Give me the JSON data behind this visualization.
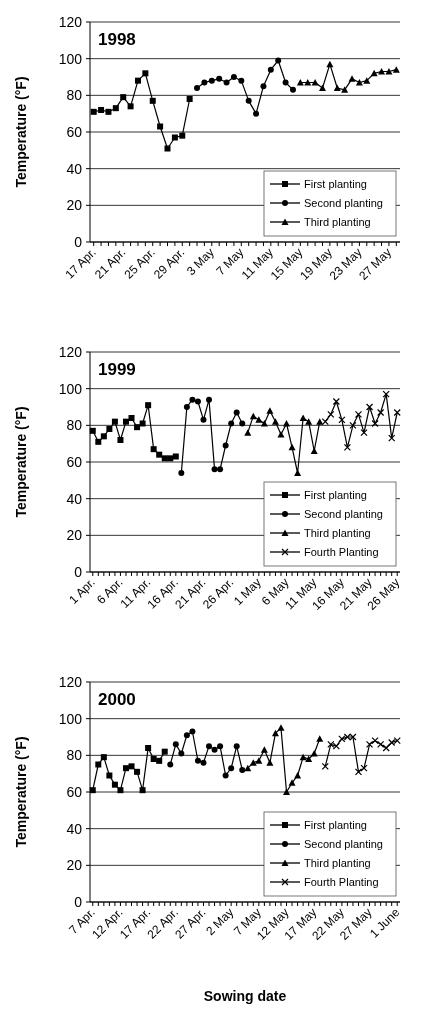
{
  "chart_data": [
    {
      "type": "line",
      "title": "1998",
      "ylabel": "Temperature (°F)",
      "ylim": [
        0,
        120
      ],
      "yticks": [
        0,
        20,
        40,
        60,
        80,
        100,
        120
      ],
      "grid": "y",
      "legend": "bottom right",
      "categories": [
        "17 Apr.",
        null,
        null,
        null,
        "21 Apr.",
        null,
        null,
        null,
        "25 Apr.",
        null,
        null,
        null,
        "29 Apr.",
        null,
        null,
        null,
        "3 May",
        null,
        null,
        null,
        "7 May",
        null,
        null,
        null,
        "11 May",
        null,
        null,
        null,
        "15 May",
        null,
        null,
        null,
        "19 May",
        null,
        null,
        null,
        "23 May",
        null,
        null,
        null,
        "27 May",
        null
      ],
      "series": [
        {
          "name": "First planting",
          "color": "#000000",
          "marker": "square",
          "values": [
            71,
            72,
            71,
            73,
            79,
            74,
            88,
            92,
            77,
            63,
            51,
            57,
            58,
            78,
            null,
            null,
            null,
            null,
            null,
            null,
            null,
            null,
            null,
            null,
            null,
            null,
            null,
            null,
            null,
            null,
            null,
            null,
            null,
            null,
            null,
            null,
            null,
            null,
            null,
            null,
            null,
            null
          ]
        },
        {
          "name": "Second planting",
          "color": "#000000",
          "marker": "circle",
          "values": [
            null,
            null,
            null,
            null,
            null,
            null,
            null,
            null,
            null,
            null,
            null,
            null,
            null,
            null,
            84,
            87,
            88,
            89,
            87,
            90,
            88,
            77,
            70,
            85,
            94,
            99,
            87,
            83,
            null,
            null,
            null,
            null,
            null,
            null,
            null,
            null,
            null,
            null,
            null,
            null,
            null,
            null
          ]
        },
        {
          "name": "Third planting",
          "color": "#000000",
          "marker": "triangle",
          "values": [
            null,
            null,
            null,
            null,
            null,
            null,
            null,
            null,
            null,
            null,
            null,
            null,
            null,
            null,
            null,
            null,
            null,
            null,
            null,
            null,
            null,
            null,
            null,
            null,
            null,
            null,
            null,
            null,
            87,
            87,
            87,
            84,
            97,
            84,
            83,
            89,
            87,
            88,
            92,
            93,
            93,
            94
          ]
        }
      ]
    },
    {
      "type": "line",
      "title": "1999",
      "ylabel": "Temperature (°F)",
      "ylim": [
        0,
        120
      ],
      "yticks": [
        0,
        20,
        40,
        60,
        80,
        100,
        120
      ],
      "grid": "y",
      "legend": "bottom right",
      "categories": [
        "1 Apr.",
        null,
        null,
        null,
        null,
        "6 Apr.",
        null,
        null,
        null,
        null,
        "11 Apr.",
        null,
        null,
        null,
        null,
        "16 Apr.",
        null,
        null,
        null,
        null,
        "21 Apr.",
        null,
        null,
        null,
        null,
        "26 Apr.",
        null,
        null,
        null,
        null,
        "1 May",
        null,
        null,
        null,
        null,
        "6 May",
        null,
        null,
        null,
        null,
        "11 May",
        null,
        null,
        null,
        null,
        "16 May",
        null,
        null,
        null,
        null,
        "21 May",
        null,
        null,
        null,
        null,
        "26 May"
      ],
      "series": [
        {
          "name": "First planting",
          "color": "#000000",
          "marker": "square",
          "values": [
            77,
            71,
            74,
            78,
            82,
            72,
            82,
            84,
            79,
            81,
            91,
            67,
            64,
            62,
            62,
            63,
            null,
            null,
            null,
            null,
            null,
            null,
            null,
            null,
            null,
            null,
            null,
            null,
            null,
            null,
            null,
            null,
            null,
            null,
            null,
            null,
            null,
            null,
            null,
            null,
            null,
            null,
            null,
            null,
            null,
            null,
            null,
            null,
            null,
            null,
            null,
            null,
            null,
            null,
            null,
            null
          ]
        },
        {
          "name": "Second planting",
          "color": "#000000",
          "marker": "circle",
          "values": [
            null,
            null,
            null,
            null,
            null,
            null,
            null,
            null,
            null,
            null,
            null,
            null,
            null,
            null,
            null,
            null,
            54,
            90,
            94,
            93,
            83,
            94,
            56,
            56,
            69,
            81,
            87,
            81,
            null,
            null,
            null,
            null,
            null,
            null,
            null,
            null,
            null,
            null,
            null,
            null,
            null,
            null,
            null,
            null,
            null,
            null,
            null,
            null,
            null,
            null,
            null,
            null,
            null,
            null,
            null,
            null
          ]
        },
        {
          "name": "Third planting",
          "color": "#000000",
          "marker": "triangle",
          "values": [
            null,
            null,
            null,
            null,
            null,
            null,
            null,
            null,
            null,
            null,
            null,
            null,
            null,
            null,
            null,
            null,
            null,
            null,
            null,
            null,
            null,
            null,
            null,
            null,
            null,
            null,
            null,
            null,
            76,
            85,
            83,
            81,
            88,
            82,
            75,
            81,
            68,
            54,
            84,
            82,
            66,
            82,
            null,
            null,
            null,
            null,
            null,
            null,
            null,
            null,
            null,
            null,
            null,
            null,
            null,
            null
          ]
        },
        {
          "name": "Fourth Planting",
          "color": "#000000",
          "marker": "cross",
          "values": [
            null,
            null,
            null,
            null,
            null,
            null,
            null,
            null,
            null,
            null,
            null,
            null,
            null,
            null,
            null,
            null,
            null,
            null,
            null,
            null,
            null,
            null,
            null,
            null,
            null,
            null,
            null,
            null,
            null,
            null,
            null,
            null,
            null,
            null,
            null,
            null,
            null,
            null,
            null,
            null,
            null,
            null,
            82,
            86,
            93,
            83,
            68,
            80,
            86,
            76,
            90,
            81,
            87,
            97,
            73,
            87
          ]
        }
      ]
    },
    {
      "type": "line",
      "title": "2000",
      "ylabel": "Temperature (°F)",
      "xlabel": "Sowing date",
      "ylim": [
        0,
        120
      ],
      "yticks": [
        0,
        20,
        40,
        60,
        80,
        100,
        120
      ],
      "grid": "y",
      "legend": "bottom right",
      "categories": [
        "7 Apr.",
        null,
        null,
        null,
        null,
        "12 Apr.",
        null,
        null,
        null,
        null,
        "17 Apr.",
        null,
        null,
        null,
        null,
        "22 Apr.",
        null,
        null,
        null,
        null,
        "27 Apr.",
        null,
        null,
        null,
        null,
        "2 May",
        null,
        null,
        null,
        null,
        "7 May",
        null,
        null,
        null,
        null,
        "12 May",
        null,
        null,
        null,
        null,
        "17 May",
        null,
        null,
        null,
        null,
        "22 May",
        null,
        null,
        null,
        null,
        "27 May",
        null,
        null,
        null,
        null,
        "1 June"
      ],
      "series": [
        {
          "name": "First planting",
          "color": "#000000",
          "marker": "square",
          "values": [
            61,
            75,
            79,
            69,
            64,
            61,
            73,
            74,
            71,
            61,
            84,
            78,
            77,
            82,
            null,
            null,
            null,
            null,
            null,
            null,
            null,
            null,
            null,
            null,
            null,
            null,
            null,
            null,
            null,
            null,
            null,
            null,
            null,
            null,
            null,
            null,
            null,
            null,
            null,
            null,
            null,
            null,
            null,
            null,
            null,
            null,
            null,
            null,
            null,
            null,
            null,
            null,
            null,
            null,
            null,
            null
          ]
        },
        {
          "name": "Second planting",
          "color": "#000000",
          "marker": "circle",
          "values": [
            null,
            null,
            null,
            null,
            null,
            null,
            null,
            null,
            null,
            null,
            null,
            null,
            null,
            null,
            75,
            86,
            81,
            91,
            93,
            77,
            76,
            85,
            83,
            85,
            69,
            73,
            85,
            72,
            null,
            null,
            null,
            null,
            null,
            null,
            null,
            null,
            null,
            null,
            null,
            null,
            null,
            null,
            null,
            null,
            null,
            null,
            null,
            null,
            null,
            null,
            null,
            null,
            null,
            null,
            null,
            null
          ]
        },
        {
          "name": "Third planting",
          "color": "#000000",
          "marker": "triangle",
          "values": [
            null,
            null,
            null,
            null,
            null,
            null,
            null,
            null,
            null,
            null,
            null,
            null,
            null,
            null,
            null,
            null,
            null,
            null,
            null,
            null,
            null,
            null,
            null,
            null,
            null,
            null,
            null,
            null,
            73,
            76,
            77,
            83,
            76,
            92,
            95,
            60,
            65,
            69,
            79,
            78,
            81,
            89,
            null,
            null,
            null,
            null,
            null,
            null,
            null,
            null,
            null,
            null,
            null,
            null,
            null,
            null
          ]
        },
        {
          "name": "Fourth Planting",
          "color": "#000000",
          "marker": "cross",
          "values": [
            null,
            null,
            null,
            null,
            null,
            null,
            null,
            null,
            null,
            null,
            null,
            null,
            null,
            null,
            null,
            null,
            null,
            null,
            null,
            null,
            null,
            null,
            null,
            null,
            null,
            null,
            null,
            null,
            null,
            null,
            null,
            null,
            null,
            null,
            null,
            null,
            null,
            null,
            null,
            null,
            null,
            null,
            74,
            86,
            85,
            89,
            90,
            90,
            71,
            73,
            86,
            88,
            86,
            84,
            87,
            88
          ]
        }
      ]
    }
  ]
}
